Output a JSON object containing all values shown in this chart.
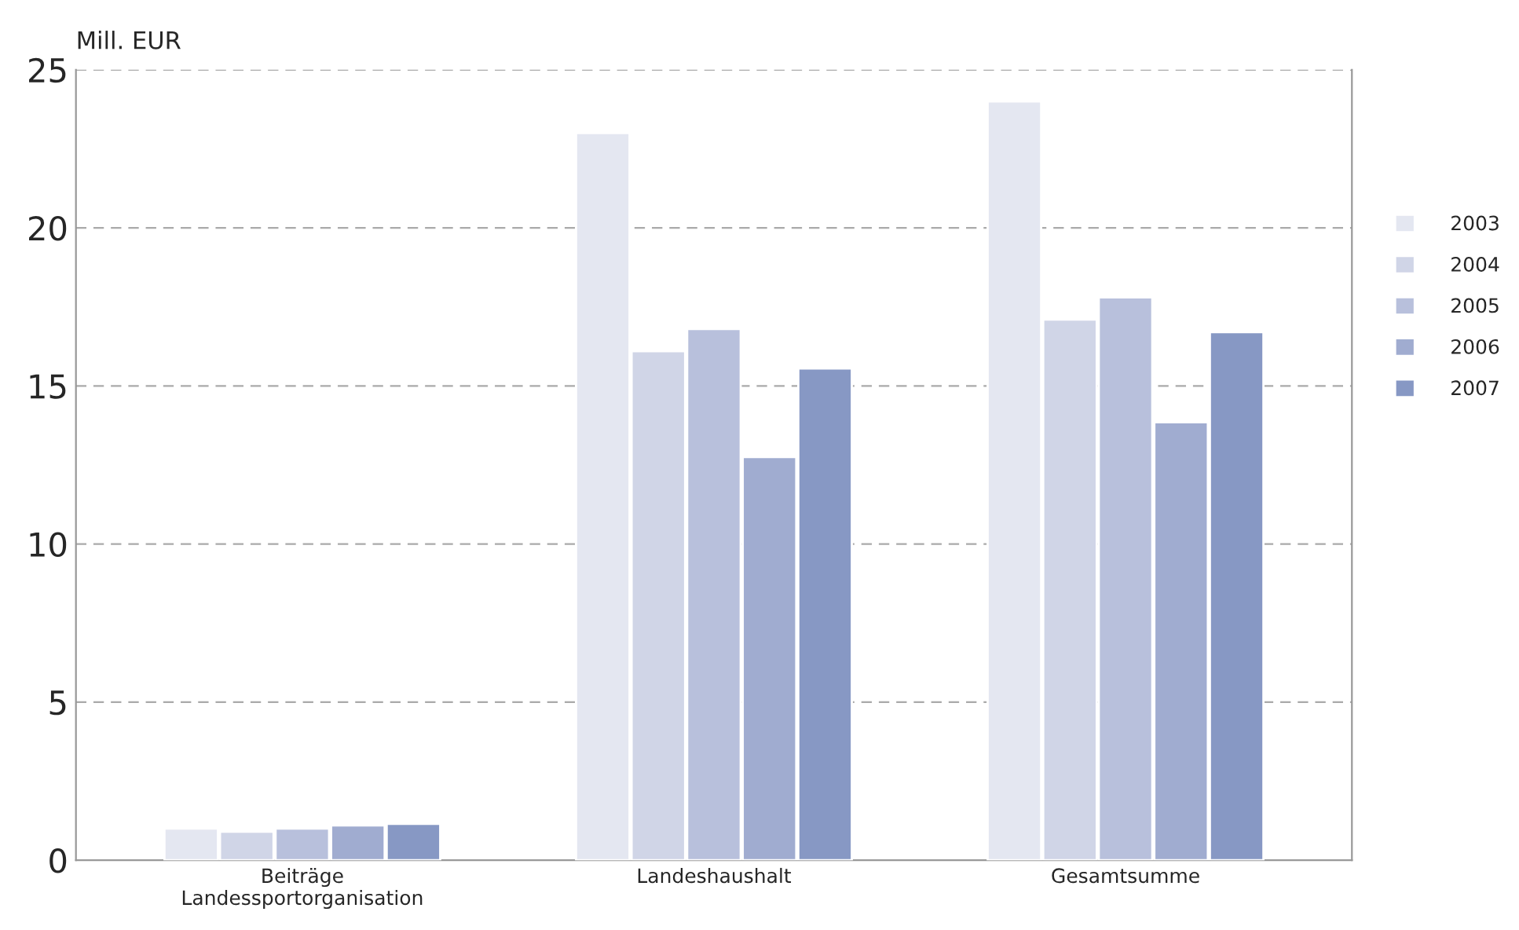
{
  "chart_data": {
    "type": "bar",
    "ylabel": "Mill. EUR",
    "categories": [
      "Beiträge\nLandessportorganisation",
      "Landeshaushalt",
      "Gesamtsumme"
    ],
    "series": [
      {
        "name": "2003",
        "color": "#e4e7f1",
        "values": [
          1.0,
          23.0,
          24.0
        ]
      },
      {
        "name": "2004",
        "color": "#d0d5e7",
        "values": [
          0.9,
          16.1,
          17.1
        ]
      },
      {
        "name": "2005",
        "color": "#b8c0dc",
        "values": [
          1.0,
          16.8,
          17.8
        ]
      },
      {
        "name": "2006",
        "color": "#a0acd0",
        "values": [
          1.1,
          12.75,
          13.85
        ]
      },
      {
        "name": "2007",
        "color": "#8798c4",
        "values": [
          1.15,
          15.55,
          16.7
        ]
      }
    ],
    "ylim": [
      0,
      25
    ],
    "yticks": [
      0,
      5,
      10,
      15,
      20,
      25
    ],
    "grid": "y",
    "legend": "right"
  }
}
